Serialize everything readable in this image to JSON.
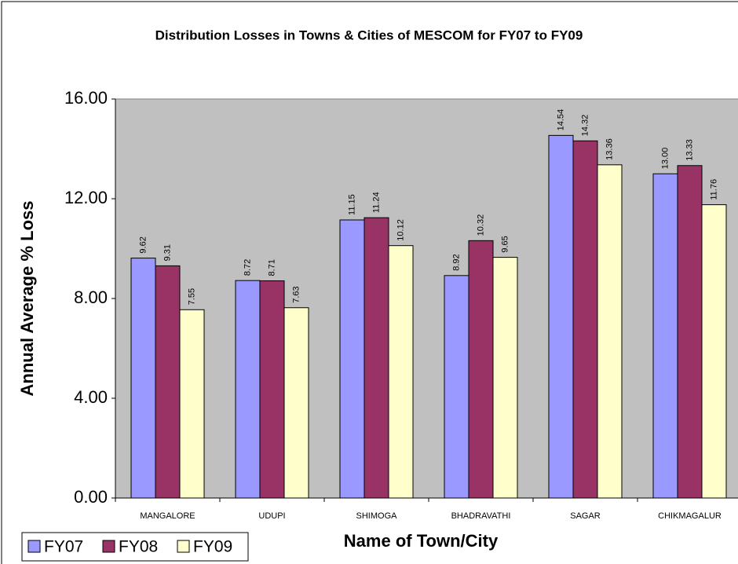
{
  "chart_data": {
    "type": "bar",
    "title": "Distribution Losses in Towns & Cities of MESCOM for FY07 to FY09",
    "x_label": "Name of Town/City",
    "y_label": "Annual Average % Loss",
    "categories": [
      "MANGALORE",
      "UDUPI",
      "SHIMOGA",
      "BHADRAVATHI",
      "SAGAR",
      "CHIKMAGALUR"
    ],
    "series": [
      {
        "name": "FY07",
        "color": "#9999ff",
        "values": [
          9.62,
          8.72,
          11.15,
          8.92,
          14.54,
          13.0
        ],
        "value_labels": [
          "9.62",
          "8.72",
          "11.15",
          "8.92",
          "14.54",
          "13.00"
        ]
      },
      {
        "name": "FY08",
        "color": "#993366",
        "values": [
          9.31,
          8.71,
          11.24,
          10.32,
          14.32,
          13.33
        ],
        "value_labels": [
          "9.31",
          "8.71",
          "11.24",
          "10.32",
          "14.32",
          "13.33"
        ]
      },
      {
        "name": "FY09",
        "color": "#ffffcc",
        "values": [
          7.55,
          7.63,
          10.12,
          9.65,
          13.36,
          11.76
        ],
        "value_labels": [
          "7.55",
          "7.63",
          "10.12",
          "9.65",
          "13.36",
          "11.76"
        ]
      }
    ],
    "ylim": [
      0,
      16
    ],
    "yticks": [
      {
        "value": 0,
        "label": "0.00"
      },
      {
        "value": 4,
        "label": "4.00"
      },
      {
        "value": 8,
        "label": "8.00"
      },
      {
        "value": 12,
        "label": "12.00"
      },
      {
        "value": 16,
        "label": "16.00"
      }
    ],
    "grid": false,
    "legend": "bottom-left",
    "plot_background": "#c0c0c0"
  }
}
